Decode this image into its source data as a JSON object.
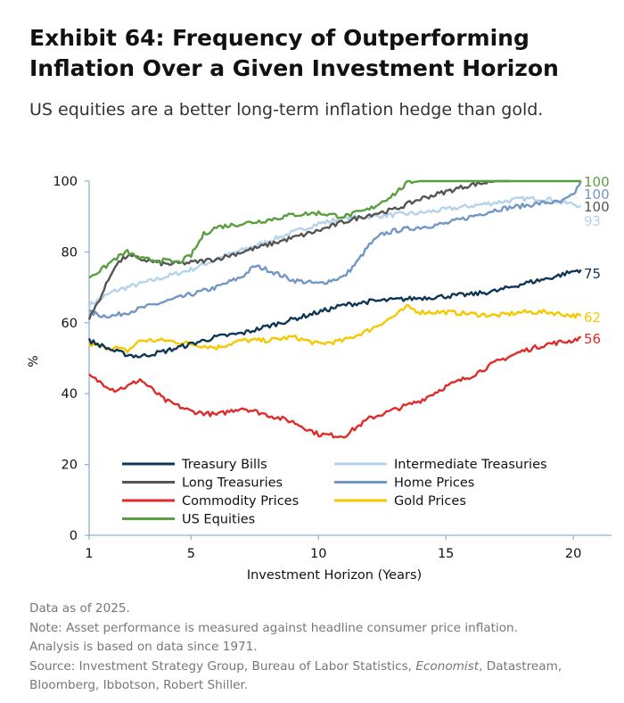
{
  "title_line1": "Exhibit 64: Frequency of Outperforming",
  "title_line2": "Inflation Over a Given Investment Horizon",
  "subtitle": "US equities are a better long-term inflation hedge than gold.",
  "notes": {
    "line1": "Data as of 2025.",
    "line2": "Note: Asset performance is measured against headline consumer price inflation.",
    "line3": "Analysis is based on data since 1971.",
    "source_pre": "Source: Investment Strategy Group, Bureau of Labor Statistics, ",
    "source_italic": "Economist",
    "source_post": ", Datastream,",
    "line5": "Bloomberg, Ibbotson, Robert Shiller."
  },
  "chart_data": {
    "type": "line",
    "xlabel": "Investment Horizon (Years)",
    "ylabel": "%",
    "xlim": [
      1,
      21.5
    ],
    "ylim": [
      0,
      100
    ],
    "xticks": [
      1,
      5,
      10,
      15,
      20
    ],
    "yticks": [
      0,
      20,
      40,
      60,
      80,
      100
    ],
    "legend_position": "bottom-left",
    "series": [
      {
        "name": "Treasury Bills",
        "color": "#0f3557",
        "end_label": "75",
        "x": [
          1,
          1.5,
          2,
          2.5,
          3,
          4,
          5,
          6,
          7,
          8,
          9,
          10,
          11,
          12,
          13,
          14,
          15,
          16,
          17,
          18,
          19,
          20,
          20.3
        ],
        "y": [
          55,
          53.5,
          52,
          51,
          50.5,
          52,
          54,
          56,
          57,
          59,
          61,
          63,
          65,
          66,
          66.5,
          67,
          67.5,
          68,
          69,
          71,
          72.5,
          74.5,
          75
        ]
      },
      {
        "name": "Intermediate Treasuries",
        "color": "#b5d3ea",
        "end_label": "93",
        "x": [
          1,
          1.5,
          2,
          3,
          4,
          5,
          6,
          7,
          8,
          9,
          10,
          11,
          12,
          13,
          14,
          15,
          16,
          17,
          18,
          19,
          19.5,
          20,
          20.3
        ],
        "y": [
          65,
          67,
          69,
          71,
          73,
          75,
          78,
          80.5,
          83,
          85.5,
          88,
          89.5,
          90,
          90.5,
          91,
          92,
          93,
          94,
          95,
          95,
          94,
          93.5,
          93
        ]
      },
      {
        "name": "Long Treasuries",
        "color": "#555555",
        "end_label": "100",
        "x": [
          1,
          1.5,
          2,
          2.5,
          3,
          4,
          5,
          6,
          7,
          8,
          9,
          10,
          11,
          12,
          13,
          14,
          15,
          16,
          16.5,
          17,
          17.5
        ],
        "y": [
          61,
          68,
          76,
          79,
          78,
          76.5,
          77,
          78,
          80,
          82,
          84,
          86,
          88.5,
          90.5,
          92,
          95,
          97,
          99,
          99.5,
          100,
          100
        ]
      },
      {
        "name": "Home Prices",
        "color": "#7397c4",
        "end_label": "100",
        "x": [
          1,
          1.5,
          2,
          3,
          4,
          5,
          6,
          7,
          7.5,
          8,
          9,
          10,
          11,
          11.5,
          12,
          12.5,
          13,
          14,
          15,
          16,
          17,
          18,
          19,
          19.5,
          20,
          20.3
        ],
        "y": [
          63,
          62,
          62,
          64,
          66,
          68,
          70,
          73,
          76,
          75,
          72,
          71,
          73,
          77,
          82,
          85,
          86,
          87,
          88,
          90,
          92,
          93,
          94,
          94,
          96,
          100
        ]
      },
      {
        "name": "Commodity Prices",
        "color": "#e02b2b",
        "end_label": "56",
        "x": [
          1,
          1.5,
          2,
          2.5,
          3,
          4,
          5,
          6,
          7,
          8,
          9,
          10,
          11,
          12,
          13,
          14,
          15,
          16,
          17,
          18,
          19,
          20,
          20.3
        ],
        "y": [
          45,
          43,
          41,
          42,
          44,
          38,
          35,
          34,
          36,
          34,
          32,
          28.5,
          28,
          33,
          35.5,
          38,
          42,
          45,
          49,
          52,
          54,
          55,
          56
        ]
      },
      {
        "name": "Gold Prices",
        "color": "#f5c800",
        "end_label": "62",
        "x": [
          1,
          1.5,
          2,
          2.5,
          3,
          4,
          5,
          6,
          7,
          8,
          9,
          10,
          11,
          12,
          13,
          13.5,
          14,
          15,
          16,
          17,
          18,
          19,
          20,
          20.3
        ],
        "y": [
          54,
          53,
          53,
          52,
          55,
          55,
          54,
          53,
          55,
          55,
          56,
          54,
          55,
          58,
          62,
          64.5,
          63,
          63,
          62.5,
          62,
          63,
          63,
          62,
          62
        ]
      },
      {
        "name": "US Equities",
        "color": "#5b9e3f",
        "end_label": "100",
        "x": [
          1,
          1.5,
          2,
          2.5,
          3,
          4,
          4.5,
          5,
          5.5,
          6,
          7,
          8,
          9,
          10,
          11,
          12,
          13,
          13.5,
          14,
          15,
          16,
          17,
          18,
          19,
          20,
          20.3
        ],
        "y": [
          73,
          75,
          78,
          80,
          78,
          77.5,
          77,
          79,
          85,
          87,
          88,
          89,
          90.5,
          91,
          90,
          92,
          96.5,
          99.5,
          100,
          100,
          100,
          100,
          100,
          100,
          100,
          100
        ]
      }
    ]
  }
}
